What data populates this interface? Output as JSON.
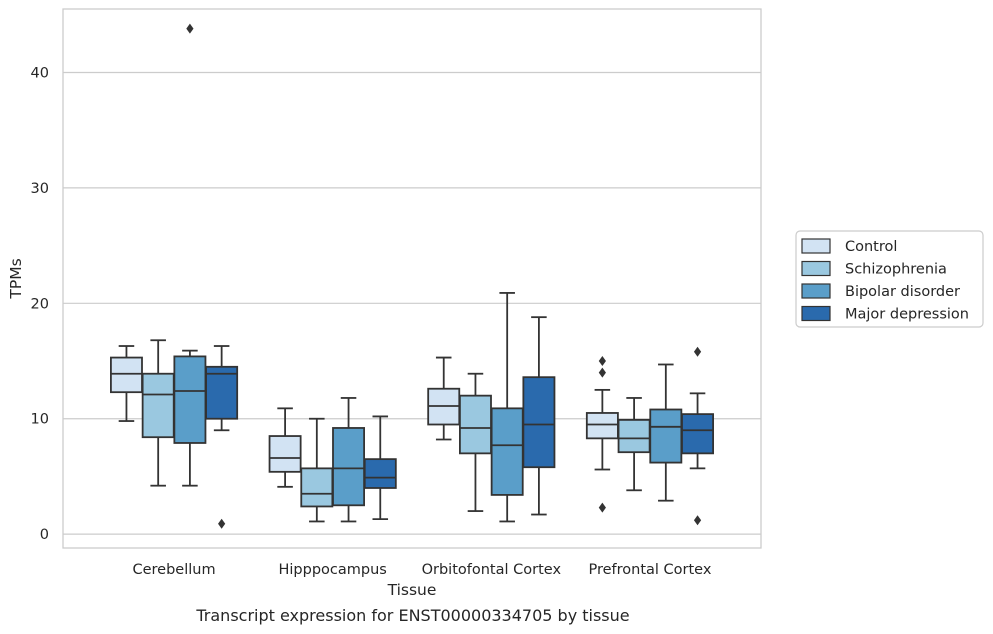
{
  "chart_data": {
    "type": "box",
    "xlabel": "Tissue",
    "ylabel": "TPMs",
    "caption": "Transcript expression for ENST00000334705 by tissue",
    "ylim": [
      -1.2,
      45.5
    ],
    "yticks": [
      0,
      10,
      20,
      30,
      40
    ],
    "grid": true,
    "legend_placement": "right",
    "categories": [
      "Cerebellum",
      "Hipppocampus",
      "Orbitofontal Cortex",
      "Prefrontal Cortex"
    ],
    "series": [
      {
        "name": "Control",
        "color": "#d2e3f3",
        "boxes": [
          {
            "whislo": 9.8,
            "q1": 12.3,
            "med": 13.9,
            "q3": 15.3,
            "whishi": 16.3,
            "fliers": []
          },
          {
            "whislo": 4.1,
            "q1": 5.4,
            "med": 6.6,
            "q3": 8.5,
            "whishi": 10.9,
            "fliers": []
          },
          {
            "whislo": 8.2,
            "q1": 9.5,
            "med": 11.1,
            "q3": 12.6,
            "whishi": 15.3,
            "fliers": []
          },
          {
            "whislo": 5.6,
            "q1": 8.3,
            "med": 9.5,
            "q3": 10.5,
            "whishi": 12.5,
            "fliers": [
              2.3,
              14.0,
              15.0
            ]
          }
        ]
      },
      {
        "name": "Schizophrenia",
        "color": "#9ac8e0",
        "boxes": [
          {
            "whislo": 4.2,
            "q1": 8.4,
            "med": 12.1,
            "q3": 13.9,
            "whishi": 16.8,
            "fliers": []
          },
          {
            "whislo": 1.1,
            "q1": 2.4,
            "med": 3.5,
            "q3": 5.7,
            "whishi": 10.0,
            "fliers": []
          },
          {
            "whislo": 2.0,
            "q1": 7.0,
            "med": 9.2,
            "q3": 12.0,
            "whishi": 13.9,
            "fliers": []
          },
          {
            "whislo": 3.8,
            "q1": 7.1,
            "med": 8.3,
            "q3": 9.9,
            "whishi": 11.8,
            "fliers": []
          }
        ]
      },
      {
        "name": "Bipolar disorder",
        "color": "#5a9ec9",
        "boxes": [
          {
            "whislo": 4.2,
            "q1": 7.9,
            "med": 12.4,
            "q3": 15.4,
            "whishi": 15.9,
            "fliers": [
              43.8
            ]
          },
          {
            "whislo": 1.1,
            "q1": 2.5,
            "med": 5.7,
            "q3": 9.2,
            "whishi": 11.8,
            "fliers": []
          },
          {
            "whislo": 1.1,
            "q1": 3.4,
            "med": 7.7,
            "q3": 10.9,
            "whishi": 20.9,
            "fliers": []
          },
          {
            "whislo": 2.9,
            "q1": 6.2,
            "med": 9.3,
            "q3": 10.8,
            "whishi": 14.7,
            "fliers": []
          }
        ]
      },
      {
        "name": "Major depression",
        "color": "#2a6aad",
        "boxes": [
          {
            "whislo": 9.0,
            "q1": 10.0,
            "med": 13.9,
            "q3": 14.5,
            "whishi": 16.3,
            "fliers": [
              0.9
            ]
          },
          {
            "whislo": 1.3,
            "q1": 4.0,
            "med": 4.9,
            "q3": 6.5,
            "whishi": 10.2,
            "fliers": []
          },
          {
            "whislo": 1.7,
            "q1": 5.8,
            "med": 9.5,
            "q3": 13.6,
            "whishi": 18.8,
            "fliers": []
          },
          {
            "whislo": 5.7,
            "q1": 7.0,
            "med": 9.0,
            "q3": 10.4,
            "whishi": 12.2,
            "fliers": [
              1.2,
              15.8
            ]
          }
        ]
      }
    ]
  }
}
